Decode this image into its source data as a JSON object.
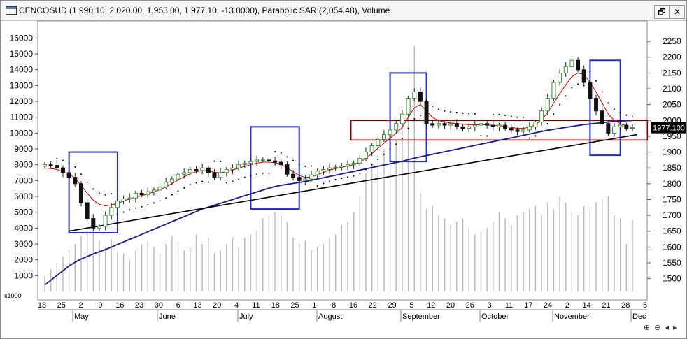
{
  "window": {
    "title": "CENCOSUD (1,990.10, 2,020.00, 1,953.00, 1,977.10, -13.0000), Parabolic SAR (2,054.48), Volume",
    "restore_glyph": "🗗",
    "close_glyph": "✕"
  },
  "colors": {
    "candle_up": "#3b8f3b",
    "candle_down": "#111111",
    "sar": "#000000",
    "ma_short": "#d40000",
    "ma_long": "#1a1a8c",
    "trendline": "#000000",
    "highlight_box": "#1f2fc9",
    "range_box": "#7a0000",
    "volume": "#b9b9b9",
    "last_price_bg": "#000000"
  },
  "icons": [
    "window-icon",
    "restore-icon",
    "close-icon",
    "scroll-left-icon",
    "scroll-right-icon",
    "zoom-in-icon",
    "zoom-out-icon"
  ],
  "scrollbar": {
    "left_glyph": "◂",
    "right_glyph": "▸",
    "zoom_in_glyph": "⊕",
    "zoom_out_glyph": "⊖"
  },
  "chart_data": {
    "type": "candlestick",
    "title": "CENCOSUD (1,990.10, 2,020.00, 1,953.00, 1,977.10, -13.0000), Parabolic SAR (2,054.48), Volume",
    "price_axis": {
      "ticks": [
        1500,
        1550,
        1600,
        1650,
        1700,
        1750,
        1800,
        1850,
        1900,
        1950,
        2000,
        2050,
        2100,
        2150,
        2200,
        2250
      ],
      "range": [
        1455,
        2290
      ]
    },
    "volume_axis": {
      "ticks": [
        1000,
        2000,
        3000,
        4000,
        5000,
        6000,
        7000,
        8000,
        9000,
        10000,
        11000,
        12000,
        13000,
        14000,
        15000,
        16000
      ],
      "range": [
        0,
        16500
      ],
      "unit_label": "x1000"
    },
    "x_day_ticks": [
      "18",
      "25",
      "2",
      "9",
      "16",
      "23",
      "30",
      "6",
      "13",
      "20",
      "4",
      "11",
      "18",
      "25",
      "1",
      "8",
      "16",
      "22",
      "29",
      "5",
      "12",
      "20",
      "26",
      "3",
      "11",
      "17",
      "24",
      "2",
      "14",
      "21",
      "28",
      "5"
    ],
    "x_month_labels": [
      "May",
      "June",
      "July",
      "August",
      "September",
      "October",
      "November",
      "Dec"
    ],
    "last_price_label": "1977.100",
    "close": [
      1860,
      1858,
      1850,
      1835,
      1820,
      1800,
      1740,
      1690,
      1660,
      1665,
      1700,
      1725,
      1745,
      1752,
      1755,
      1770,
      1765,
      1775,
      1780,
      1790,
      1805,
      1815,
      1830,
      1835,
      1845,
      1842,
      1850,
      1835,
      1820,
      1835,
      1845,
      1850,
      1860,
      1865,
      1870,
      1875,
      1875,
      1872,
      1868,
      1860,
      1830,
      1820,
      1810,
      1815,
      1828,
      1840,
      1845,
      1850,
      1852,
      1855,
      1860,
      1865,
      1880,
      1900,
      1920,
      1940,
      1955,
      1970,
      1990,
      2020,
      2070,
      2090,
      2060,
      1990,
      1985,
      1990,
      1985,
      1990,
      1980,
      1975,
      1980,
      1985,
      1990,
      1985,
      1980,
      1985,
      1975,
      1970,
      1965,
      1970,
      1980,
      1995,
      2030,
      2070,
      2120,
      2150,
      2170,
      2190,
      2160,
      2120,
      2070,
      2030,
      1990,
      1960,
      1980,
      1985,
      1975,
      1977.1
    ],
    "ma_short": [
      1850,
      1848,
      1845,
      1838,
      1830,
      1818,
      1795,
      1770,
      1748,
      1735,
      1730,
      1733,
      1738,
      1745,
      1752,
      1758,
      1762,
      1768,
      1774,
      1781,
      1790,
      1800,
      1812,
      1822,
      1832,
      1838,
      1842,
      1840,
      1836,
      1835,
      1838,
      1843,
      1849,
      1855,
      1860,
      1865,
      1868,
      1868,
      1866,
      1862,
      1850,
      1838,
      1826,
      1820,
      1821,
      1828,
      1836,
      1843,
      1848,
      1852,
      1856,
      1860,
      1868,
      1880,
      1895,
      1912,
      1928,
      1944,
      1960,
      1978,
      2010,
      2040,
      2050,
      2030,
      2010,
      2000,
      1995,
      1992,
      1990,
      1988,
      1987,
      1986,
      1987,
      1986,
      1984,
      1984,
      1981,
      1978,
      1975,
      1975,
      1979,
      1986,
      2002,
      2025,
      2055,
      2085,
      2112,
      2138,
      2150,
      2145,
      2120,
      2090,
      2055,
      2020,
      2000,
      1990,
      1982,
      1977
    ],
    "ma_long": [
      1480,
      1495,
      1510,
      1525,
      1540,
      1552,
      1562,
      1570,
      1578,
      1585,
      1592,
      1600,
      1608,
      1616,
      1624,
      1632,
      1640,
      1648,
      1656,
      1664,
      1672,
      1680,
      1688,
      1696,
      1704,
      1712,
      1720,
      1726,
      1732,
      1738,
      1744,
      1750,
      1756,
      1762,
      1768,
      1774,
      1780,
      1786,
      1791,
      1795,
      1798,
      1801,
      1804,
      1807,
      1811,
      1815,
      1819,
      1823,
      1827,
      1831,
      1835,
      1839,
      1843,
      1847,
      1851,
      1855,
      1859,
      1863,
      1867,
      1871,
      1876,
      1881,
      1885,
      1889,
      1893,
      1897,
      1901,
      1905,
      1909,
      1913,
      1917,
      1921,
      1925,
      1929,
      1933,
      1937,
      1941,
      1945,
      1949,
      1953,
      1957,
      1961,
      1965,
      1969,
      1972,
      1975,
      1978,
      1981,
      1984,
      1987,
      1989,
      1991,
      1993,
      1995,
      1997,
      1998,
      1999,
      2000
    ],
    "trendline": {
      "start": [
        4,
        1650
      ],
      "end": [
        97,
        1955
      ]
    },
    "highlight_boxes": [
      {
        "from": 4,
        "to": 12,
        "low": 1645,
        "high": 1900
      },
      {
        "from": 34,
        "to": 42,
        "low": 1720,
        "high": 1980
      },
      {
        "from": 57,
        "to": 63,
        "low": 1870,
        "high": 2150
      },
      {
        "from": 90,
        "to": 95,
        "low": 1890,
        "high": 2190
      }
    ],
    "range_box": {
      "from": 51,
      "to": 99,
      "low": 1938,
      "high": 2000
    },
    "volume": [
      1.0,
      1.4,
      1.8,
      2.2,
      2.6,
      3.0,
      3.5,
      3.8,
      4.0,
      3.2,
      2.8,
      3.3,
      2.5,
      2.4,
      2.0,
      2.6,
      3.0,
      3.2,
      2.8,
      2.4,
      3.0,
      3.5,
      3.2,
      2.6,
      2.8,
      3.6,
      3.0,
      3.4,
      2.4,
      2.6,
      3.0,
      3.4,
      2.8,
      3.4,
      3.6,
      3.8,
      4.6,
      4.8,
      5.0,
      4.8,
      4.4,
      3.4,
      3.0,
      3.2,
      2.6,
      2.8,
      3.0,
      3.4,
      3.6,
      4.2,
      4.4,
      5.0,
      6.0,
      7.5,
      8.0,
      8.6,
      9.0,
      9.2,
      9.5,
      10.5,
      12.0,
      15.5,
      6.2,
      5.2,
      5.4,
      4.8,
      4.6,
      4.2,
      4.4,
      4.6,
      4.0,
      3.6,
      3.8,
      4.0,
      4.4,
      5.0,
      4.6,
      4.2,
      4.8,
      5.0,
      5.2,
      5.4,
      4.8,
      5.6,
      5.2,
      6.0,
      5.6,
      5.0,
      4.8,
      5.4,
      5.2,
      5.6,
      5.8,
      6.0,
      4.8,
      4.6,
      3.0,
      4.5
    ]
  }
}
